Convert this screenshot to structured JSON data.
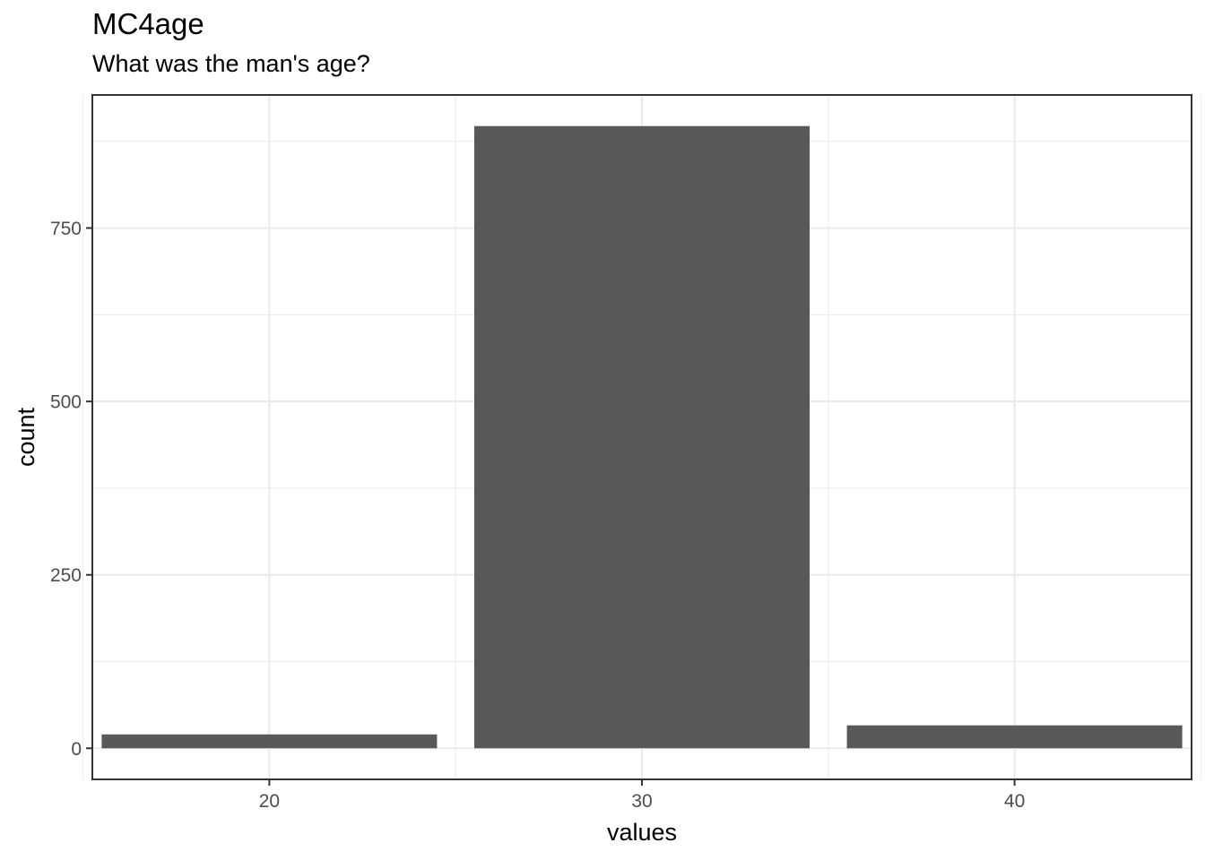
{
  "chart_data": {
    "type": "bar",
    "title": "MC4age",
    "subtitle": "What was the man's age?",
    "xlabel": "values",
    "ylabel": "count",
    "x": [
      20,
      30,
      40
    ],
    "values": [
      20,
      897,
      33
    ],
    "bar_width": 9,
    "xlim": [
      15.25,
      44.75
    ],
    "ylim": [
      -44.85,
      941.85
    ],
    "x_ticks": [
      20,
      30,
      40
    ],
    "x_tick_labels": [
      "20",
      "30",
      "40"
    ],
    "y_ticks": [
      0,
      250,
      500,
      750
    ],
    "y_tick_labels": [
      "0",
      "250",
      "500",
      "750"
    ],
    "x_minor": [
      15,
      25,
      35,
      45
    ],
    "y_minor": [
      125,
      375,
      625,
      875
    ],
    "grid": true,
    "legend": "none",
    "colors": {
      "bar": "#595959",
      "grid": "#ebebeb",
      "panel_border": "#333333",
      "tick": "#333333",
      "tick_label": "#4d4d4d"
    }
  }
}
